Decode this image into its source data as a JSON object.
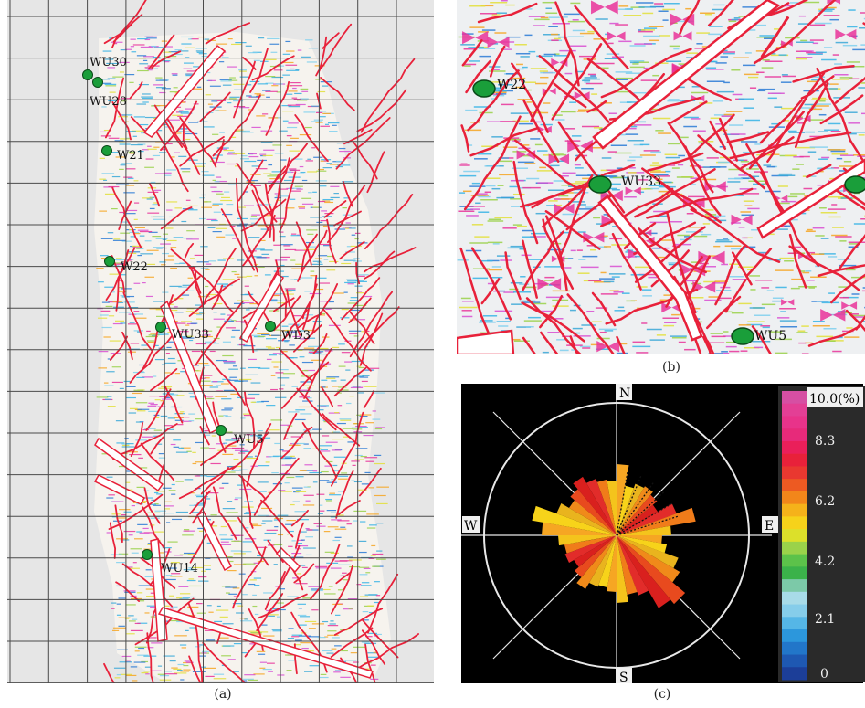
{
  "captions": {
    "a": "(a)",
    "b": "(b)",
    "c": "(c)"
  },
  "panel_a": {
    "wells": [
      {
        "label": "WU30"
      },
      {
        "label": "WU28"
      },
      {
        "label": "W21"
      },
      {
        "label": "W22"
      },
      {
        "label": "WU33"
      },
      {
        "label": "WD3"
      },
      {
        "label": "WU5"
      },
      {
        "label": "WU14"
      }
    ]
  },
  "panel_b": {
    "wells": [
      {
        "label": "W22"
      },
      {
        "label": "WU33"
      },
      {
        "label": "WU5"
      }
    ]
  },
  "panel_c": {
    "directions": {
      "north": "N",
      "south": "S",
      "east": "E",
      "west": "W"
    },
    "legend_ticks": [
      "10.0(%)",
      "8.3",
      "6.2",
      "4.2",
      "2.1",
      "0"
    ]
  },
  "colors": {
    "fracture": "#e8213a",
    "well": "#1a9e3a",
    "grid": "#5a5a5a",
    "background_a": "#e6e6e6",
    "rose_bg": "#000000",
    "rose_circle": "#e8e8e8"
  }
}
